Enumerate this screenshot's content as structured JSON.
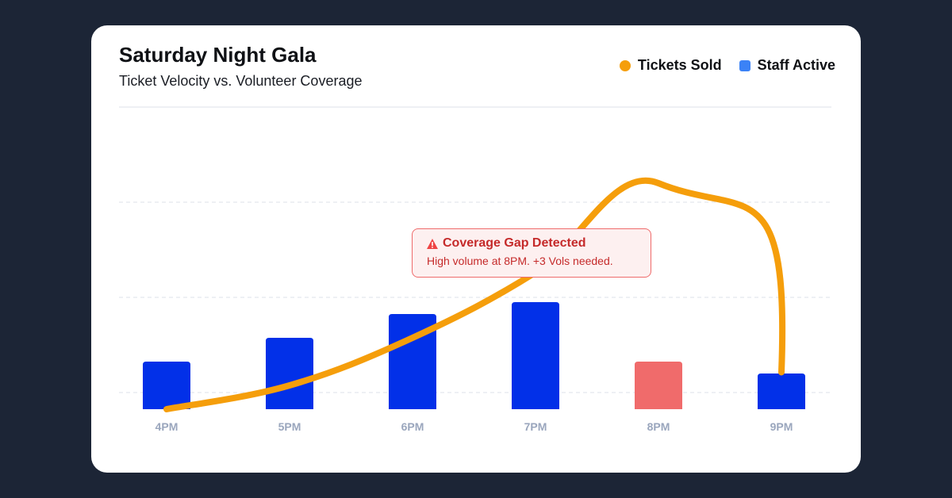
{
  "colors": {
    "tickets": "#f59e0b",
    "staff": "#0230e8",
    "gap": "#f06b6b",
    "grid": "#e8ebf0"
  },
  "chart_data": {
    "type": "bar+line",
    "title": "Saturday Night Gala",
    "subtitle": "Ticket Velocity vs. Volunteer Coverage",
    "categories": [
      "4PM",
      "5PM",
      "6PM",
      "7PM",
      "8PM",
      "9PM"
    ],
    "series": [
      {
        "name": "Tickets Sold",
        "type": "line",
        "values": [
          0,
          2,
          6,
          11.5,
          19,
          3.1
        ]
      },
      {
        "name": "Staff Active",
        "type": "bar",
        "values": [
          4,
          6,
          8,
          9,
          4,
          3
        ],
        "highlight_index": 4
      }
    ],
    "ylim": [
      0,
      25
    ],
    "grid": true,
    "legend": "top-right",
    "annotation": {
      "title": "Coverage Gap Detected",
      "text": "High volume at 8PM. +3 Vols needed.",
      "icon": "warning-triangle-icon"
    }
  }
}
